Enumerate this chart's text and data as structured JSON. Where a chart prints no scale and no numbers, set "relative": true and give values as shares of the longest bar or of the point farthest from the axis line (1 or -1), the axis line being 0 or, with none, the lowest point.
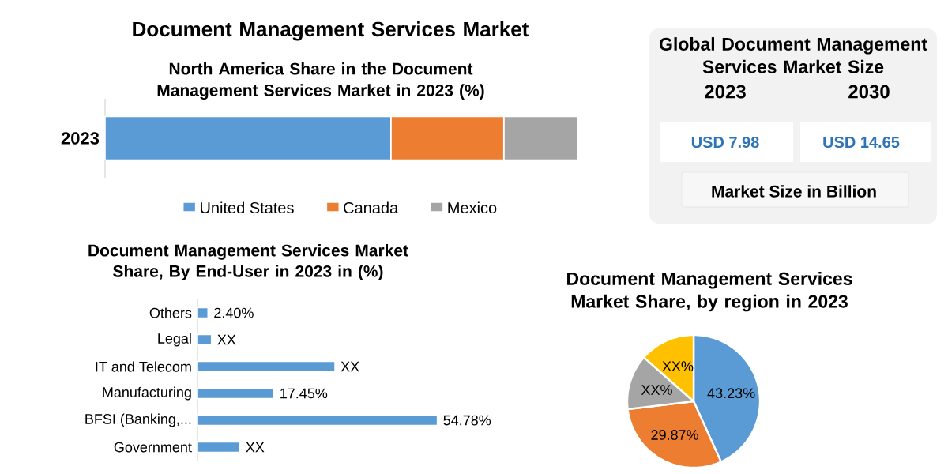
{
  "chart_data": [
    {
      "type": "bar",
      "title": "Document Management Services Market",
      "subtitle": "North America Share in the Document Management Services Market in 2023 (%)",
      "categories": [
        "2023"
      ],
      "stacked": true,
      "orientation": "horizontal",
      "relative": true,
      "legend": "bottom",
      "series": [
        {
          "name": "United States",
          "color": "#5b9bd5",
          "values": [
            0.605
          ]
        },
        {
          "name": "Canada",
          "color": "#ed7d31",
          "values": [
            0.239
          ]
        },
        {
          "name": "Mexico",
          "color": "#a5a5a5",
          "values": [
            0.156
          ]
        }
      ]
    },
    {
      "type": "other",
      "title": "Global Document Management Services Market Size",
      "annotations": [
        "2023",
        "2030",
        "USD 7.98",
        "USD 14.65",
        "Market Size in Billion"
      ]
    },
    {
      "type": "bar",
      "orientation": "horizontal",
      "title": "Document Management Services Market Share, By End-User in 2023 in (%)",
      "categories": [
        "Others",
        "Legal",
        "IT and Telecom",
        "Manufacturing",
        "BFSI (Banking,...",
        "Government"
      ],
      "color": "#5b9bd5",
      "values": [
        2.4,
        3.2,
        31.4,
        17.45,
        54.78,
        9.7
      ],
      "value_labels": [
        "2.40%",
        "XX",
        "XX",
        "17.45%",
        "54.78%",
        "XX"
      ]
    },
    {
      "type": "pie",
      "title": "Document Management Services Market Share, by region in 2023",
      "categories": [
        null,
        null,
        null,
        null
      ],
      "values": [
        43.23,
        29.87,
        13.4,
        13.5
      ],
      "colors": [
        "#5b9bd5",
        "#ed7d31",
        "#a5a5a5",
        "#ffc000"
      ],
      "value_labels": [
        "43.23%",
        "29.87%",
        "XX%",
        "XX%"
      ]
    }
  ]
}
